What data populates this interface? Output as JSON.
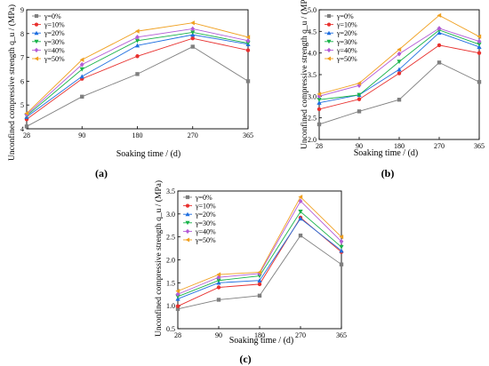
{
  "series_names": [
    "γ=0%",
    "γ=10%",
    "γ=20%",
    "γ=30%",
    "γ=40%",
    "γ=50%"
  ],
  "series_colors": [
    "#7f7f7f",
    "#e8312f",
    "#1f6fe0",
    "#19b34a",
    "#b45bd6",
    "#f0a020"
  ],
  "series_markers": [
    "square",
    "circle",
    "triangle-up",
    "triangle-down",
    "diamond",
    "triangle-left"
  ],
  "chart_data": [
    {
      "type": "line",
      "panel_label": "(a)",
      "categories": [
        "28",
        "90",
        "180",
        "270",
        "365"
      ],
      "ylabel": "Unconfined compressive strength q_u / (MPa)",
      "xlabel": "Soaking time / (d)",
      "ylim": [
        4,
        9
      ],
      "yticks": [
        "4",
        "5",
        "6",
        "7",
        "8",
        "9"
      ],
      "legend_position": "top-left",
      "series": [
        {
          "name": "γ=0%",
          "values": [
            4.1,
            5.35,
            6.3,
            7.45,
            6.0
          ]
        },
        {
          "name": "γ=10%",
          "values": [
            4.4,
            6.1,
            7.05,
            7.8,
            7.3
          ]
        },
        {
          "name": "γ=20%",
          "values": [
            4.5,
            6.2,
            7.5,
            7.95,
            7.55
          ]
        },
        {
          "name": "γ=30%",
          "values": [
            4.55,
            6.5,
            7.7,
            8.05,
            7.6
          ]
        },
        {
          "name": "γ=40%",
          "values": [
            4.6,
            6.7,
            7.85,
            8.2,
            7.7
          ]
        },
        {
          "name": "γ=50%",
          "values": [
            4.65,
            6.9,
            8.1,
            8.45,
            7.85
          ]
        }
      ]
    },
    {
      "type": "line",
      "panel_label": "(b)",
      "categories": [
        "28",
        "90",
        "180",
        "270",
        "365"
      ],
      "ylabel": "Unconfined compressive strength q_u / (MPa)",
      "xlabel": "Soaking time / (d)",
      "ylim": [
        2.0,
        5.0
      ],
      "yticks": [
        "2.0",
        "2.5",
        "3.0",
        "3.5",
        "4.0",
        "4.5",
        "5.0"
      ],
      "legend_position": "top-left",
      "series": [
        {
          "name": "γ=0%",
          "values": [
            2.35,
            2.65,
            2.92,
            3.78,
            3.33
          ]
        },
        {
          "name": "γ=10%",
          "values": [
            2.7,
            2.93,
            3.53,
            4.18,
            4.0
          ]
        },
        {
          "name": "γ=20%",
          "values": [
            2.85,
            3.03,
            3.62,
            4.47,
            4.14
          ]
        },
        {
          "name": "γ=30%",
          "values": [
            2.92,
            3.03,
            3.8,
            4.53,
            4.2
          ]
        },
        {
          "name": "γ=40%",
          "values": [
            3.0,
            3.25,
            3.98,
            4.57,
            4.27
          ]
        },
        {
          "name": "γ=50%",
          "values": [
            3.05,
            3.3,
            4.08,
            4.87,
            4.38
          ]
        }
      ]
    },
    {
      "type": "line",
      "panel_label": "(c)",
      "categories": [
        "28",
        "90",
        "180",
        "270",
        "365"
      ],
      "ylabel": "Unconfined compressive strength q_u / (MPa)",
      "xlabel": "Soaking time / (d)",
      "ylim": [
        0.5,
        3.5
      ],
      "yticks": [
        "0.5",
        "1.0",
        "1.5",
        "2.0",
        "2.5",
        "3.0",
        "3.5"
      ],
      "legend_position": "top-left",
      "series": [
        {
          "name": "γ=0%",
          "values": [
            0.93,
            1.13,
            1.22,
            2.53,
            1.9
          ]
        },
        {
          "name": "γ=10%",
          "values": [
            0.99,
            1.4,
            1.47,
            2.92,
            2.17
          ]
        },
        {
          "name": "γ=20%",
          "values": [
            1.15,
            1.5,
            1.55,
            2.9,
            2.2
          ]
        },
        {
          "name": "γ=30%",
          "values": [
            1.2,
            1.55,
            1.65,
            3.05,
            2.28
          ]
        },
        {
          "name": "γ=40%",
          "values": [
            1.25,
            1.62,
            1.7,
            3.28,
            2.4
          ]
        },
        {
          "name": "γ=50%",
          "values": [
            1.32,
            1.68,
            1.73,
            3.37,
            2.5
          ]
        }
      ]
    }
  ]
}
